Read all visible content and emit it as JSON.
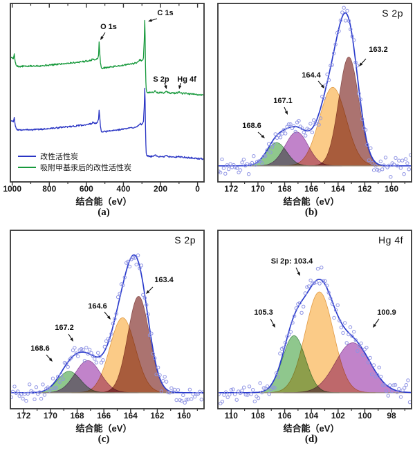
{
  "palette": {
    "axis": "#333333",
    "text": "#111111",
    "envelope": "#2b3ccc",
    "scatter_stroke": "#8e93e4",
    "baseline": "#9a9483",
    "background": "#ffffff"
  },
  "chart_data": [
    {
      "id": "a",
      "letter": "(a)",
      "type": "line",
      "title": "",
      "xlabel": "结合能（eV）",
      "x_range": [
        1010,
        -35
      ],
      "x_ticks": [
        1000,
        800,
        600,
        400,
        200,
        0
      ],
      "x_axis_reversed": true,
      "top_ticks": true,
      "extra_minor": null,
      "legend": {
        "position": "lower-left"
      },
      "annotations": [
        {
          "text": "O 1s",
          "tx": 157,
          "ty": 33,
          "ax": 152,
          "ay": 47,
          "bx": 145,
          "by": 58
        },
        {
          "text": "C 1s",
          "tx": 239,
          "ty": 13,
          "ax": 227,
          "ay": 27,
          "bx": 214,
          "by": 31
        },
        {
          "text": "S 2p",
          "tx": 233,
          "ty": 109,
          "ax": 238,
          "ay": 120,
          "bx": 241,
          "by": 129
        },
        {
          "text": "Hg 4f",
          "tx": 270,
          "ty": 109,
          "ax": 261,
          "ay": 120,
          "bx": 259,
          "by": 129
        }
      ],
      "series": [
        {
          "name": "改性活性炭",
          "color": "#2a35c4",
          "jitter": 0.0045,
          "jitter_seed": 3,
          "points": [
            [
              1007,
              0.345
            ],
            [
              1000,
              0.34
            ],
            [
              994,
              0.336
            ],
            [
              989,
              0.362
            ],
            [
              984,
              0.318
            ],
            [
              978,
              0.296
            ],
            [
              968,
              0.292
            ],
            [
              955,
              0.29
            ],
            [
              940,
              0.293
            ],
            [
              922,
              0.291
            ],
            [
              905,
              0.294
            ],
            [
              888,
              0.292
            ],
            [
              870,
              0.296
            ],
            [
              852,
              0.294
            ],
            [
              832,
              0.296
            ],
            [
              810,
              0.298
            ],
            [
              788,
              0.3
            ],
            [
              765,
              0.302
            ],
            [
              742,
              0.305
            ],
            [
              718,
              0.307
            ],
            [
              695,
              0.31
            ],
            [
              672,
              0.312
            ],
            [
              650,
              0.314
            ],
            [
              628,
              0.317
            ],
            [
              607,
              0.32
            ],
            [
              588,
              0.323
            ],
            [
              574,
              0.326
            ],
            [
              564,
              0.334
            ],
            [
              556,
              0.327
            ],
            [
              547,
              0.33
            ],
            [
              539,
              0.334
            ],
            [
              534,
              0.352
            ],
            [
              531,
              0.402
            ],
            [
              528,
              0.368
            ],
            [
              524,
              0.312
            ],
            [
              519,
              0.281
            ],
            [
              510,
              0.279
            ],
            [
              498,
              0.282
            ],
            [
              482,
              0.284
            ],
            [
              465,
              0.287
            ],
            [
              448,
              0.289
            ],
            [
              430,
              0.292
            ],
            [
              412,
              0.294
            ],
            [
              394,
              0.297
            ],
            [
              376,
              0.3
            ],
            [
              358,
              0.303
            ],
            [
              341,
              0.306
            ],
            [
              327,
              0.311
            ],
            [
              316,
              0.32
            ],
            [
              309,
              0.329
            ],
            [
              303,
              0.319
            ],
            [
              297,
              0.325
            ],
            [
              292,
              0.338
            ],
            [
              288,
              0.42
            ],
            [
              285,
              0.525
            ],
            [
              283,
              0.46
            ],
            [
              281,
              0.32
            ],
            [
              279,
              0.21
            ],
            [
              277,
              0.162
            ],
            [
              274,
              0.147
            ],
            [
              269,
              0.143
            ],
            [
              261,
              0.145
            ],
            [
              252,
              0.142
            ],
            [
              243,
              0.144
            ],
            [
              234,
              0.147
            ],
            [
              228,
              0.151
            ],
            [
              221,
              0.144
            ],
            [
              211,
              0.141
            ],
            [
              200,
              0.143
            ],
            [
              189,
              0.141
            ],
            [
              178,
              0.142
            ],
            [
              167,
              0.149
            ],
            [
              158,
              0.142
            ],
            [
              147,
              0.14
            ],
            [
              135,
              0.141
            ],
            [
              122,
              0.139
            ],
            [
              110,
              0.141
            ],
            [
              101,
              0.145
            ],
            [
              92,
              0.14
            ],
            [
              80,
              0.137
            ],
            [
              66,
              0.138
            ],
            [
              52,
              0.135
            ],
            [
              38,
              0.135
            ],
            [
              24,
              0.133
            ],
            [
              10,
              0.132
            ],
            [
              0,
              0.131
            ],
            [
              -35,
              0.129
            ]
          ]
        },
        {
          "name": "吸附甲基汞后的改性活性炭",
          "color": "#17993c",
          "jitter": 0.0045,
          "jitter_seed": 5,
          "points": [
            [
              1007,
              0.7
            ],
            [
              1000,
              0.695
            ],
            [
              994,
              0.69
            ],
            [
              989,
              0.718
            ],
            [
              984,
              0.672
            ],
            [
              978,
              0.652
            ],
            [
              968,
              0.648
            ],
            [
              955,
              0.646
            ],
            [
              940,
              0.649
            ],
            [
              922,
              0.647
            ],
            [
              905,
              0.65
            ],
            [
              888,
              0.648
            ],
            [
              870,
              0.652
            ],
            [
              852,
              0.65
            ],
            [
              832,
              0.652
            ],
            [
              810,
              0.654
            ],
            [
              788,
              0.656
            ],
            [
              765,
              0.658
            ],
            [
              742,
              0.661
            ],
            [
              718,
              0.663
            ],
            [
              695,
              0.666
            ],
            [
              672,
              0.668
            ],
            [
              650,
              0.67
            ],
            [
              628,
              0.673
            ],
            [
              607,
              0.676
            ],
            [
              588,
              0.679
            ],
            [
              574,
              0.682
            ],
            [
              564,
              0.69
            ],
            [
              556,
              0.683
            ],
            [
              547,
              0.686
            ],
            [
              539,
              0.69
            ],
            [
              534,
              0.71
            ],
            [
              531,
              0.785
            ],
            [
              528,
              0.73
            ],
            [
              524,
              0.668
            ],
            [
              519,
              0.639
            ],
            [
              510,
              0.637
            ],
            [
              498,
              0.64
            ],
            [
              482,
              0.642
            ],
            [
              465,
              0.645
            ],
            [
              448,
              0.647
            ],
            [
              430,
              0.65
            ],
            [
              412,
              0.652
            ],
            [
              394,
              0.655
            ],
            [
              376,
              0.658
            ],
            [
              358,
              0.661
            ],
            [
              341,
              0.664
            ],
            [
              327,
              0.669
            ],
            [
              316,
              0.678
            ],
            [
              309,
              0.687
            ],
            [
              303,
              0.677
            ],
            [
              297,
              0.683
            ],
            [
              292,
              0.696
            ],
            [
              288,
              0.79
            ],
            [
              285,
              0.905
            ],
            [
              283,
              0.82
            ],
            [
              281,
              0.66
            ],
            [
              279,
              0.56
            ],
            [
              277,
              0.52
            ],
            [
              274,
              0.505
            ],
            [
              269,
              0.501
            ],
            [
              261,
              0.503
            ],
            [
              252,
              0.5
            ],
            [
              243,
              0.502
            ],
            [
              234,
              0.505
            ],
            [
              228,
              0.509
            ],
            [
              221,
              0.502
            ],
            [
              211,
              0.499
            ],
            [
              200,
              0.501
            ],
            [
              189,
              0.499
            ],
            [
              178,
              0.5
            ],
            [
              167,
              0.507
            ],
            [
              158,
              0.5
            ],
            [
              147,
              0.498
            ],
            [
              135,
              0.499
            ],
            [
              122,
              0.497
            ],
            [
              110,
              0.499
            ],
            [
              101,
              0.503
            ],
            [
              92,
              0.498
            ],
            [
              80,
              0.495
            ],
            [
              66,
              0.496
            ],
            [
              52,
              0.493
            ],
            [
              38,
              0.493
            ],
            [
              24,
              0.491
            ],
            [
              10,
              0.49
            ],
            [
              0,
              0.489
            ],
            [
              -35,
              0.487
            ]
          ]
        }
      ]
    },
    {
      "id": "b",
      "letter": "(b)",
      "type": "fitted-spectrum",
      "title": "S 2p",
      "xlabel": "结合能（eV）",
      "x_range": [
        173,
        158.5
      ],
      "x_ticks": [
        172,
        170,
        168,
        166,
        164,
        162,
        160
      ],
      "x_axis_reversed": true,
      "top_ticks": false,
      "extra_minor": 159,
      "baseline_frac": 0.09,
      "envelope_scale": 1.0,
      "components": [
        {
          "peak_ev": 168.6,
          "height": 0.13,
          "sigma": 0.75,
          "color": "#8fc78d",
          "edge": "#4e8f57"
        },
        {
          "peak_ev": 167.1,
          "height": 0.19,
          "sigma": 0.85,
          "color": "#c183ca",
          "edge": "#8f4f9c"
        },
        {
          "peak_ev": 164.4,
          "height": 0.44,
          "sigma": 1.0,
          "color": "#fbcb87",
          "edge": "#e09a44"
        },
        {
          "peak_ev": 163.2,
          "height": 0.61,
          "sigma": 0.75,
          "color": "#ab7370",
          "edge": "#8a4f4c"
        }
      ],
      "scatter": {
        "step": 0.125,
        "noise": 0.065,
        "seed": 11
      },
      "annotations": [
        {
          "text": "168.6",
          "tx": 64,
          "ty": 176,
          "ax": 73,
          "ay": 191,
          "bx": 83,
          "by": 200
        },
        {
          "text": "167.1",
          "tx": 109,
          "ty": 140,
          "ax": 111,
          "ay": 155,
          "bx": 116,
          "by": 166
        },
        {
          "text": "164.4",
          "tx": 150,
          "ty": 103,
          "ax": 160,
          "ay": 117,
          "bx": 169,
          "by": 128
        },
        {
          "text": "163.2",
          "tx": 247,
          "ty": 66,
          "ax": 229,
          "ay": 85,
          "bx": 219,
          "by": 96
        }
      ]
    },
    {
      "id": "c",
      "letter": "(c)",
      "type": "fitted-spectrum",
      "title": "S 2p",
      "xlabel": "结合能（eV）",
      "x_range": [
        173,
        158.5
      ],
      "x_ticks": [
        172,
        170,
        168,
        166,
        164,
        162,
        160
      ],
      "x_axis_reversed": true,
      "top_ticks": false,
      "extra_minor": 159,
      "baseline_frac": 0.09,
      "envelope_scale": 1.0,
      "components": [
        {
          "peak_ev": 168.6,
          "height": 0.12,
          "sigma": 0.85,
          "color": "#8fc78d",
          "edge": "#4e8f57"
        },
        {
          "peak_ev": 167.2,
          "height": 0.18,
          "sigma": 0.95,
          "color": "#c183ca",
          "edge": "#8f4f9c"
        },
        {
          "peak_ev": 164.6,
          "height": 0.42,
          "sigma": 0.95,
          "color": "#fbcb87",
          "edge": "#e09a44"
        },
        {
          "peak_ev": 163.4,
          "height": 0.54,
          "sigma": 0.8,
          "color": "#ab7370",
          "edge": "#8a4f4c"
        }
      ],
      "scatter": {
        "step": 0.125,
        "noise": 0.065,
        "seed": 23
      },
      "annotations": [
        {
          "text": "168.6",
          "tx": 58,
          "ty": 170,
          "ax": 67,
          "ay": 185,
          "bx": 76,
          "by": 195
        },
        {
          "text": "167.2",
          "tx": 93,
          "ty": 140,
          "ax": 99,
          "ay": 155,
          "bx": 106,
          "by": 166
        },
        {
          "text": "164.6",
          "tx": 141,
          "ty": 109,
          "ax": 151,
          "ay": 123,
          "bx": 160,
          "by": 134
        },
        {
          "text": "163.4",
          "tx": 237,
          "ty": 71,
          "ax": 221,
          "ay": 87,
          "bx": 211,
          "by": 97
        }
      ]
    },
    {
      "id": "d",
      "letter": "(d)",
      "type": "fitted-spectrum",
      "title": "Hg 4f",
      "xlabel": "结合能（eV）",
      "x_range": [
        111,
        96.5
      ],
      "x_ticks": [
        110,
        108,
        106,
        104,
        102,
        100,
        98
      ],
      "x_axis_reversed": true,
      "top_ticks": false,
      "extra_minor": 97,
      "baseline_frac": 0.09,
      "envelope_scale": 1.0,
      "components": [
        {
          "peak_ev": 105.3,
          "height": 0.32,
          "sigma": 0.85,
          "color": "#8fc78d",
          "edge": "#4e8f57"
        },
        {
          "peak_ev": 103.4,
          "height": 0.565,
          "sigma": 1.05,
          "color": "#fbcb87",
          "edge": "#e09a44"
        },
        {
          "peak_ev": 100.9,
          "height": 0.28,
          "sigma": 1.3,
          "color": "#c183ca",
          "edge": "#8f4f9c"
        }
      ],
      "scatter": {
        "step": 0.135,
        "noise": 0.075,
        "seed": 37
      },
      "annotations": [
        {
          "text": "Si 2p: 103.4",
          "tx": 122,
          "ty": 44,
          "ax": 128,
          "ay": 59,
          "bx": 134,
          "by": 71
        },
        {
          "text": "105.3",
          "tx": 81,
          "ty": 118,
          "ax": 91,
          "ay": 133,
          "bx": 98,
          "by": 146
        },
        {
          "text": "100.9",
          "tx": 259,
          "ty": 118,
          "ax": 248,
          "ay": 133,
          "bx": 239,
          "by": 146
        }
      ]
    }
  ]
}
